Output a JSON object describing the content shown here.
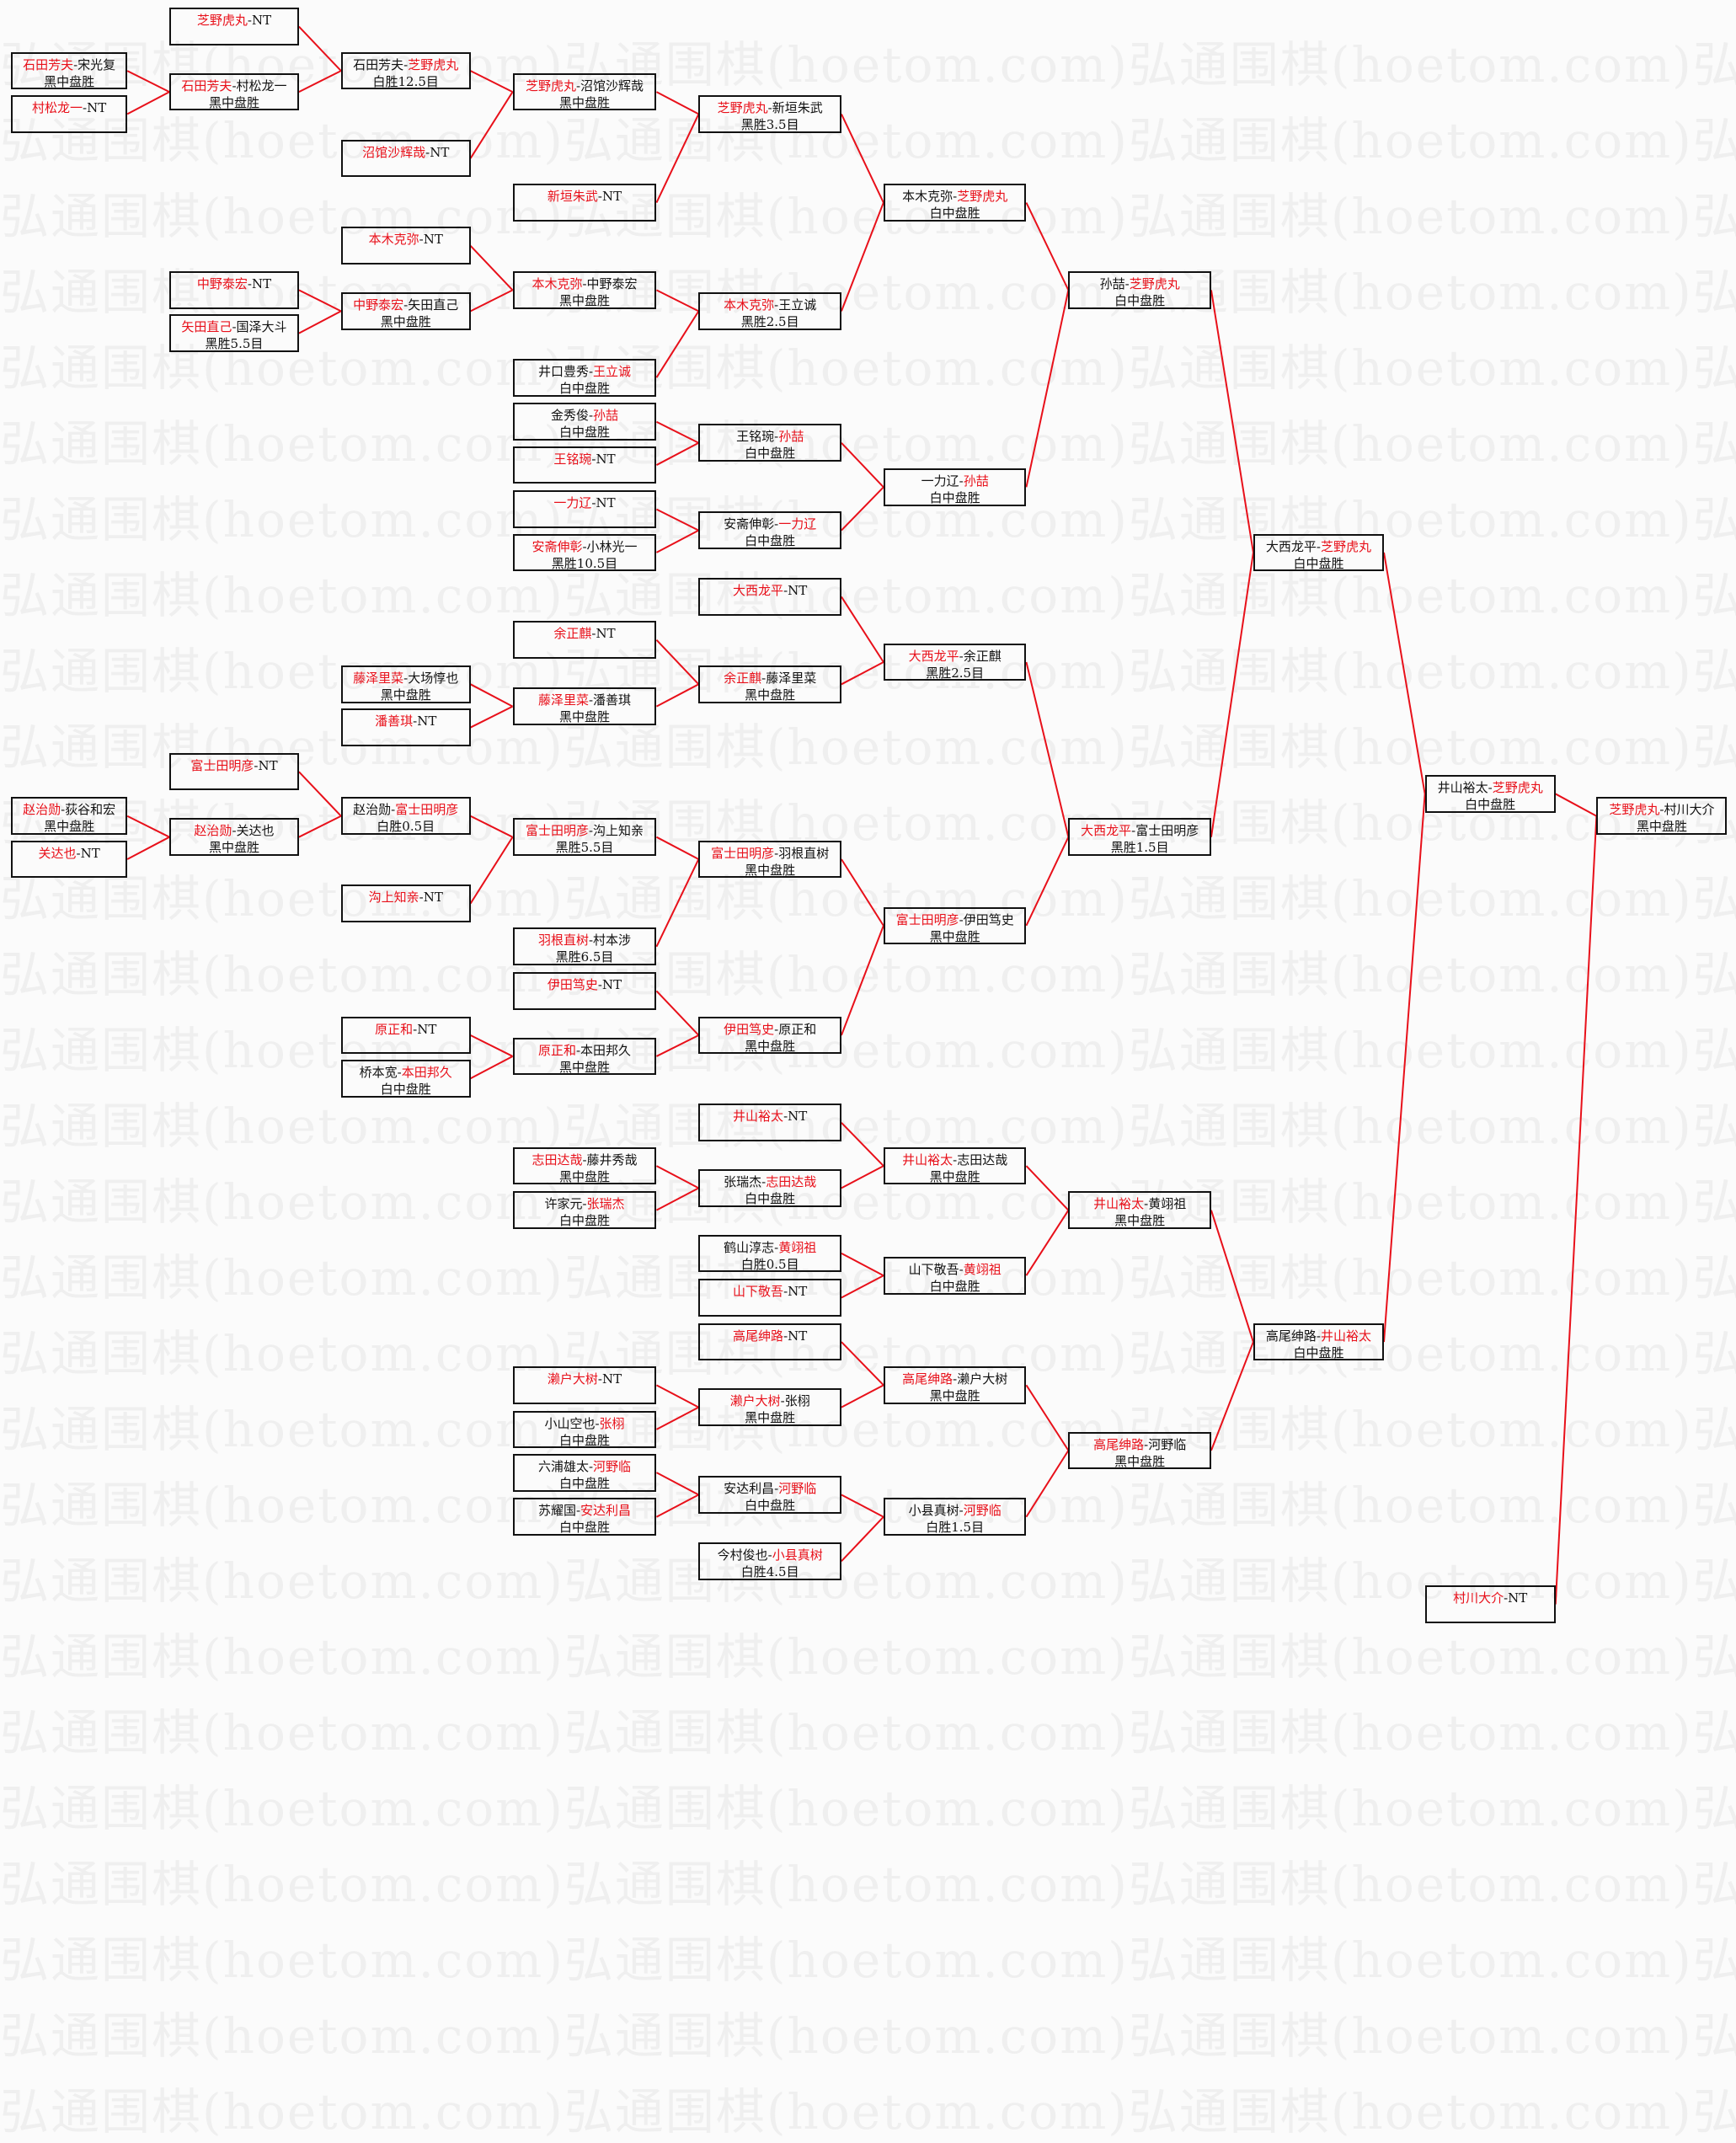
{
  "watermark": "弘通围棋(hoetom.com)",
  "colors": {
    "winner": "#e8101a",
    "connector": "#e8101a",
    "text": "#111111",
    "border": "#111111"
  },
  "separator": "-",
  "matches": [
    {
      "p1": "芝野虎丸",
      "p2": "NT",
      "winner": "p1",
      "result": ""
    },
    {
      "p1": "石田芳夫",
      "p2": "宋光复",
      "winner": "p1",
      "result": "黑中盘胜"
    },
    {
      "p1": "村松龙一",
      "p2": "NT",
      "winner": "p1",
      "result": ""
    },
    {
      "p1": "石田芳夫",
      "p2": "村松龙一",
      "winner": "p1",
      "result": "黑中盘胜",
      "from": [
        1,
        2
      ]
    },
    {
      "p1": "石田芳夫",
      "p2": "芝野虎丸",
      "winner": "p2",
      "result": "白胜12.5目",
      "from": [
        0,
        3
      ]
    },
    {
      "p1": "沼馆沙辉哉",
      "p2": "NT",
      "winner": "p1",
      "result": ""
    },
    {
      "p1": "芝野虎丸",
      "p2": "沼馆沙辉哉",
      "winner": "p1",
      "result": "黑中盘胜",
      "from": [
        4,
        5
      ]
    },
    {
      "p1": "新垣朱武",
      "p2": "NT",
      "winner": "p1",
      "result": ""
    },
    {
      "p1": "芝野虎丸",
      "p2": "新垣朱武",
      "winner": "p1",
      "result": "黑胜3.5目",
      "from": [
        6,
        7
      ]
    },
    {
      "p1": "本木克弥",
      "p2": "NT",
      "winner": "p1",
      "result": ""
    },
    {
      "p1": "中野泰宏",
      "p2": "NT",
      "winner": "p1",
      "result": ""
    },
    {
      "p1": "矢田直己",
      "p2": "国泽大斗",
      "winner": "p1",
      "result": "黑胜5.5目"
    },
    {
      "p1": "中野泰宏",
      "p2": "矢田直己",
      "winner": "p1",
      "result": "黑中盘胜",
      "from": [
        10,
        11
      ]
    },
    {
      "p1": "本木克弥",
      "p2": "中野泰宏",
      "winner": "p1",
      "result": "黑中盘胜",
      "from": [
        9,
        12
      ]
    },
    {
      "p1": "井口豊秀",
      "p2": "王立诚",
      "winner": "p2",
      "result": "白中盘胜"
    },
    {
      "p1": "本木克弥",
      "p2": "王立诚",
      "winner": "p1",
      "result": "黑胜2.5目",
      "from": [
        13,
        14
      ]
    },
    {
      "p1": "本木克弥",
      "p2": "芝野虎丸",
      "winner": "p2",
      "result": "白中盘胜",
      "from": [
        8,
        15
      ]
    },
    {
      "p1": "金秀俊",
      "p2": "孙喆",
      "winner": "p2",
      "result": "白中盘胜"
    },
    {
      "p1": "王铭琬",
      "p2": "NT",
      "winner": "p1",
      "result": ""
    },
    {
      "p1": "王铭琬",
      "p2": "孙喆",
      "winner": "p2",
      "result": "白中盘胜",
      "from": [
        17,
        18
      ]
    },
    {
      "p1": "一力辽",
      "p2": "NT",
      "winner": "p1",
      "result": ""
    },
    {
      "p1": "安斋伸彰",
      "p2": "小林光一",
      "winner": "p1",
      "result": "黑胜10.5目"
    },
    {
      "p1": "安斋伸彰",
      "p2": "一力辽",
      "winner": "p2",
      "result": "白中盘胜",
      "from": [
        20,
        21
      ]
    },
    {
      "p1": "一力辽",
      "p2": "孙喆",
      "winner": "p2",
      "result": "白中盘胜",
      "from": [
        19,
        22
      ]
    },
    {
      "p1": "孙喆",
      "p2": "芝野虎丸",
      "winner": "p2",
      "result": "白中盘胜",
      "from": [
        16,
        23
      ]
    },
    {
      "p1": "大西龙平",
      "p2": "NT",
      "winner": "p1",
      "result": ""
    },
    {
      "p1": "余正麒",
      "p2": "NT",
      "winner": "p1",
      "result": ""
    },
    {
      "p1": "藤泽里菜",
      "p2": "大场惇也",
      "winner": "p1",
      "result": "黑中盘胜"
    },
    {
      "p1": "潘善琪",
      "p2": "NT",
      "winner": "p1",
      "result": ""
    },
    {
      "p1": "藤泽里菜",
      "p2": "潘善琪",
      "winner": "p1",
      "result": "黑中盘胜",
      "from": [
        27,
        28
      ]
    },
    {
      "p1": "余正麒",
      "p2": "藤泽里菜",
      "winner": "p1",
      "result": "黑中盘胜",
      "from": [
        26,
        29
      ]
    },
    {
      "p1": "大西龙平",
      "p2": "余正麒",
      "winner": "p1",
      "result": "黑胜2.5目",
      "from": [
        25,
        30
      ]
    },
    {
      "p1": "富士田明彦",
      "p2": "NT",
      "winner": "p1",
      "result": ""
    },
    {
      "p1": "赵治勋",
      "p2": "荻谷和宏",
      "winner": "p1",
      "result": "黑中盘胜"
    },
    {
      "p1": "关达也",
      "p2": "NT",
      "winner": "p1",
      "result": ""
    },
    {
      "p1": "赵治勋",
      "p2": "关达也",
      "winner": "p1",
      "result": "黑中盘胜",
      "from": [
        33,
        34
      ]
    },
    {
      "p1": "赵治勋",
      "p2": "富士田明彦",
      "winner": "p2",
      "result": "白胜0.5目",
      "from": [
        32,
        35
      ]
    },
    {
      "p1": "沟上知亲",
      "p2": "NT",
      "winner": "p1",
      "result": ""
    },
    {
      "p1": "富士田明彦",
      "p2": "沟上知亲",
      "winner": "p1",
      "result": "黑胜5.5目",
      "from": [
        36,
        37
      ]
    },
    {
      "p1": "羽根直树",
      "p2": "村本涉",
      "winner": "p1",
      "result": "黑胜6.5目"
    },
    {
      "p1": "富士田明彦",
      "p2": "羽根直树",
      "winner": "p1",
      "result": "黑中盘胜",
      "from": [
        38,
        39
      ]
    },
    {
      "p1": "伊田笃史",
      "p2": "NT",
      "winner": "p1",
      "result": ""
    },
    {
      "p1": "原正和",
      "p2": "NT",
      "winner": "p1",
      "result": ""
    },
    {
      "p1": "桥本宽",
      "p2": "本田邦久",
      "winner": "p2",
      "result": "白中盘胜"
    },
    {
      "p1": "原正和",
      "p2": "本田邦久",
      "winner": "p1",
      "result": "黑中盘胜",
      "from": [
        42,
        43
      ]
    },
    {
      "p1": "伊田笃史",
      "p2": "原正和",
      "winner": "p1",
      "result": "黑中盘胜",
      "from": [
        41,
        44
      ]
    },
    {
      "p1": "富士田明彦",
      "p2": "伊田笃史",
      "winner": "p1",
      "result": "黑中盘胜",
      "from": [
        40,
        45
      ]
    },
    {
      "p1": "大西龙平",
      "p2": "富士田明彦",
      "winner": "p1",
      "result": "黑胜1.5目",
      "from": [
        31,
        46
      ]
    },
    {
      "p1": "大西龙平",
      "p2": "芝野虎丸",
      "winner": "p2",
      "result": "白中盘胜",
      "from": [
        24,
        47
      ]
    },
    {
      "p1": "井山裕太",
      "p2": "NT",
      "winner": "p1",
      "result": ""
    },
    {
      "p1": "志田达哉",
      "p2": "藤井秀哉",
      "winner": "p1",
      "result": "黑中盘胜"
    },
    {
      "p1": "许家元",
      "p2": "张瑞杰",
      "winner": "p2",
      "result": "白中盘胜"
    },
    {
      "p1": "张瑞杰",
      "p2": "志田达哉",
      "winner": "p2",
      "result": "白中盘胜",
      "from": [
        50,
        51
      ]
    },
    {
      "p1": "井山裕太",
      "p2": "志田达哉",
      "winner": "p1",
      "result": "黑中盘胜",
      "from": [
        49,
        52
      ]
    },
    {
      "p1": "鹤山淳志",
      "p2": "黄翊祖",
      "winner": "p2",
      "result": "白胜0.5目"
    },
    {
      "p1": "山下敬吾",
      "p2": "NT",
      "winner": "p1",
      "result": ""
    },
    {
      "p1": "山下敬吾",
      "p2": "黄翊祖",
      "winner": "p2",
      "result": "白中盘胜",
      "from": [
        54,
        55
      ]
    },
    {
      "p1": "井山裕太",
      "p2": "黄翊祖",
      "winner": "p1",
      "result": "黑中盘胜",
      "from": [
        53,
        56
      ]
    },
    {
      "p1": "高尾绅路",
      "p2": "NT",
      "winner": "p1",
      "result": ""
    },
    {
      "p1": "濑户大树",
      "p2": "NT",
      "winner": "p1",
      "result": ""
    },
    {
      "p1": "小山空也",
      "p2": "张栩",
      "winner": "p2",
      "result": "白中盘胜"
    },
    {
      "p1": "濑户大树",
      "p2": "张栩",
      "winner": "p1",
      "result": "黑中盘胜",
      "from": [
        59,
        60
      ]
    },
    {
      "p1": "高尾绅路",
      "p2": "濑户大树",
      "winner": "p1",
      "result": "黑中盘胜",
      "from": [
        58,
        61
      ]
    },
    {
      "p1": "六浦雄太",
      "p2": "河野临",
      "winner": "p2",
      "result": "白中盘胜"
    },
    {
      "p1": "苏耀国",
      "p2": "安达利昌",
      "winner": "p2",
      "result": "白中盘胜"
    },
    {
      "p1": "安达利昌",
      "p2": "河野临",
      "winner": "p2",
      "result": "白中盘胜",
      "from": [
        63,
        64
      ]
    },
    {
      "p1": "今村俊也",
      "p2": "小县真树",
      "winner": "p2",
      "result": "白胜4.5目"
    },
    {
      "p1": "小县真树",
      "p2": "河野临",
      "winner": "p2",
      "result": "白胜1.5目",
      "from": [
        65,
        66
      ]
    },
    {
      "p1": "高尾绅路",
      "p2": "河野临",
      "winner": "p1",
      "result": "黑中盘胜",
      "from": [
        62,
        67
      ]
    },
    {
      "p1": "高尾绅路",
      "p2": "井山裕太",
      "winner": "p2",
      "result": "白中盘胜",
      "from": [
        57,
        68
      ]
    },
    {
      "p1": "井山裕太",
      "p2": "芝野虎丸",
      "winner": "p2",
      "result": "白中盘胜",
      "from": [
        48,
        69
      ]
    },
    {
      "p1": "村川大介",
      "p2": "NT",
      "winner": "p1",
      "result": ""
    },
    {
      "p1": "芝野虎丸",
      "p2": "村川大介",
      "winner": "p1",
      "result": "黑中盘胜",
      "from": [
        70,
        71
      ]
    }
  ]
}
